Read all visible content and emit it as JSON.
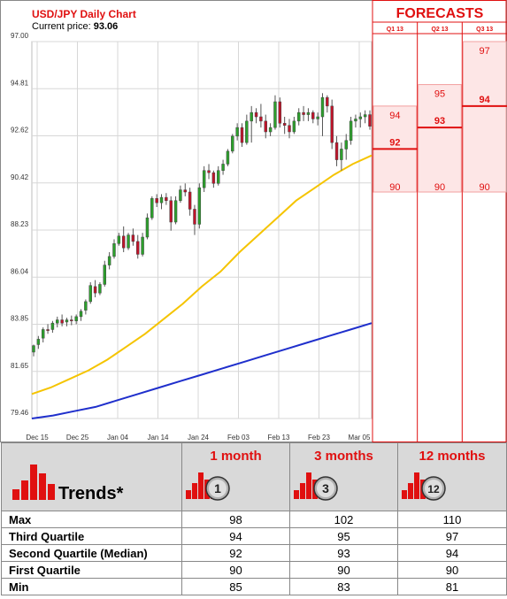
{
  "chart_data": [
    {
      "type": "candlestick",
      "title": "USD/JPY Daily Chart",
      "current_price_label": "Current price:",
      "current_price": "93.06",
      "y_ticks": [
        "97.00",
        "94.81",
        "92.62",
        "90.42",
        "88.23",
        "86.04",
        "83.85",
        "81.65",
        "79.46"
      ],
      "ylim": [
        79.46,
        97.0
      ],
      "x_ticks": [
        "Dec 15",
        "Dec 25",
        "Jan 04",
        "Jan 14",
        "Jan 24",
        "Feb 03",
        "Feb 13",
        "Feb 23",
        "Mar 05"
      ],
      "grid": true,
      "candles": [
        {
          "o": 82.55,
          "h": 82.9,
          "l": 82.35,
          "c": 82.85
        },
        {
          "o": 82.9,
          "h": 83.3,
          "l": 82.7,
          "c": 83.15
        },
        {
          "o": 83.2,
          "h": 83.7,
          "l": 83.0,
          "c": 83.6
        },
        {
          "o": 83.6,
          "h": 83.85,
          "l": 83.4,
          "c": 83.55
        },
        {
          "o": 83.6,
          "h": 84.0,
          "l": 83.45,
          "c": 83.9
        },
        {
          "o": 83.9,
          "h": 84.2,
          "l": 83.7,
          "c": 84.05
        },
        {
          "o": 84.05,
          "h": 84.3,
          "l": 83.75,
          "c": 83.9
        },
        {
          "o": 83.95,
          "h": 84.15,
          "l": 83.75,
          "c": 84.05
        },
        {
          "o": 84.05,
          "h": 84.25,
          "l": 83.8,
          "c": 84.0
        },
        {
          "o": 84.0,
          "h": 84.3,
          "l": 83.85,
          "c": 84.2
        },
        {
          "o": 84.2,
          "h": 84.55,
          "l": 84.0,
          "c": 84.45
        },
        {
          "o": 84.5,
          "h": 85.0,
          "l": 84.3,
          "c": 84.9
        },
        {
          "o": 84.9,
          "h": 85.8,
          "l": 84.8,
          "c": 85.65
        },
        {
          "o": 85.6,
          "h": 85.9,
          "l": 85.1,
          "c": 85.3
        },
        {
          "o": 85.3,
          "h": 85.8,
          "l": 85.2,
          "c": 85.7
        },
        {
          "o": 85.7,
          "h": 86.8,
          "l": 85.6,
          "c": 86.6
        },
        {
          "o": 86.6,
          "h": 87.2,
          "l": 86.4,
          "c": 87.0
        },
        {
          "o": 87.0,
          "h": 87.8,
          "l": 86.9,
          "c": 87.6
        },
        {
          "o": 87.6,
          "h": 88.1,
          "l": 87.5,
          "c": 87.95
        },
        {
          "o": 87.95,
          "h": 88.4,
          "l": 87.2,
          "c": 87.4
        },
        {
          "o": 87.4,
          "h": 88.1,
          "l": 87.3,
          "c": 88.0
        },
        {
          "o": 88.0,
          "h": 88.3,
          "l": 87.5,
          "c": 87.7
        },
        {
          "o": 87.7,
          "h": 88.0,
          "l": 86.9,
          "c": 87.1
        },
        {
          "o": 87.1,
          "h": 88.1,
          "l": 87.0,
          "c": 87.9
        },
        {
          "o": 87.9,
          "h": 89.0,
          "l": 87.8,
          "c": 88.8
        },
        {
          "o": 88.8,
          "h": 89.8,
          "l": 88.7,
          "c": 89.7
        },
        {
          "o": 89.7,
          "h": 89.9,
          "l": 89.3,
          "c": 89.5
        },
        {
          "o": 89.5,
          "h": 89.9,
          "l": 89.2,
          "c": 89.75
        },
        {
          "o": 89.75,
          "h": 89.95,
          "l": 89.4,
          "c": 89.6
        },
        {
          "o": 89.6,
          "h": 89.8,
          "l": 88.2,
          "c": 88.6
        },
        {
          "o": 88.6,
          "h": 89.8,
          "l": 88.5,
          "c": 89.6
        },
        {
          "o": 89.6,
          "h": 90.3,
          "l": 89.5,
          "c": 90.1
        },
        {
          "o": 90.1,
          "h": 90.4,
          "l": 89.8,
          "c": 90.0
        },
        {
          "o": 90.0,
          "h": 90.2,
          "l": 88.9,
          "c": 89.2
        },
        {
          "o": 89.2,
          "h": 89.4,
          "l": 88.0,
          "c": 88.5
        },
        {
          "o": 88.5,
          "h": 90.4,
          "l": 88.3,
          "c": 90.2
        },
        {
          "o": 90.2,
          "h": 91.2,
          "l": 90.0,
          "c": 91.0
        },
        {
          "o": 91.0,
          "h": 91.3,
          "l": 90.6,
          "c": 90.9
        },
        {
          "o": 90.9,
          "h": 91.0,
          "l": 90.2,
          "c": 90.4
        },
        {
          "o": 90.4,
          "h": 91.2,
          "l": 90.3,
          "c": 91.0
        },
        {
          "o": 91.0,
          "h": 91.5,
          "l": 90.8,
          "c": 91.3
        },
        {
          "o": 91.3,
          "h": 92.0,
          "l": 91.2,
          "c": 91.9
        },
        {
          "o": 91.9,
          "h": 92.7,
          "l": 91.8,
          "c": 92.6
        },
        {
          "o": 92.6,
          "h": 93.2,
          "l": 92.4,
          "c": 93.0
        },
        {
          "o": 93.0,
          "h": 93.2,
          "l": 92.1,
          "c": 92.3
        },
        {
          "o": 92.3,
          "h": 93.6,
          "l": 92.2,
          "c": 93.3
        },
        {
          "o": 93.3,
          "h": 94.0,
          "l": 92.3,
          "c": 93.7
        },
        {
          "o": 93.7,
          "h": 93.9,
          "l": 93.2,
          "c": 93.5
        },
        {
          "o": 93.5,
          "h": 94.1,
          "l": 93.0,
          "c": 93.3
        },
        {
          "o": 93.3,
          "h": 93.6,
          "l": 92.5,
          "c": 92.8
        },
        {
          "o": 92.8,
          "h": 93.2,
          "l": 92.6,
          "c": 93.0
        },
        {
          "o": 93.0,
          "h": 94.5,
          "l": 92.9,
          "c": 94.2
        },
        {
          "o": 94.2,
          "h": 94.4,
          "l": 93.0,
          "c": 93.2
        },
        {
          "o": 93.2,
          "h": 93.5,
          "l": 92.7,
          "c": 93.1
        },
        {
          "o": 93.1,
          "h": 93.4,
          "l": 92.5,
          "c": 92.8
        },
        {
          "o": 92.8,
          "h": 93.5,
          "l": 92.7,
          "c": 93.3
        },
        {
          "o": 93.3,
          "h": 93.9,
          "l": 93.1,
          "c": 93.7
        },
        {
          "o": 93.7,
          "h": 94.0,
          "l": 93.3,
          "c": 93.6
        },
        {
          "o": 93.6,
          "h": 93.9,
          "l": 93.3,
          "c": 93.7
        },
        {
          "o": 93.7,
          "h": 93.8,
          "l": 93.2,
          "c": 93.4
        },
        {
          "o": 93.4,
          "h": 93.7,
          "l": 93.1,
          "c": 93.5
        },
        {
          "o": 93.5,
          "h": 94.6,
          "l": 92.6,
          "c": 94.4
        },
        {
          "o": 94.4,
          "h": 94.5,
          "l": 93.7,
          "c": 94.0
        },
        {
          "o": 94.0,
          "h": 94.3,
          "l": 92.0,
          "c": 92.3
        },
        {
          "o": 92.3,
          "h": 92.6,
          "l": 91.2,
          "c": 91.5
        },
        {
          "o": 91.5,
          "h": 92.3,
          "l": 91.0,
          "c": 92.0
        },
        {
          "o": 92.0,
          "h": 92.7,
          "l": 91.5,
          "c": 92.4
        },
        {
          "o": 92.4,
          "h": 93.5,
          "l": 92.2,
          "c": 93.3
        },
        {
          "o": 93.3,
          "h": 93.6,
          "l": 93.0,
          "c": 93.4
        },
        {
          "o": 93.4,
          "h": 93.7,
          "l": 93.0,
          "c": 93.5
        },
        {
          "o": 93.5,
          "h": 93.8,
          "l": 93.2,
          "c": 93.6
        },
        {
          "o": 93.6,
          "h": 93.8,
          "l": 92.9,
          "c": 93.06
        }
      ],
      "ma_short": [
        80.6,
        80.9,
        81.3,
        81.7,
        82.2,
        82.8,
        83.4,
        84.1,
        84.8,
        85.6,
        86.3,
        87.2,
        88.0,
        88.8,
        89.6,
        90.2,
        90.8,
        91.3,
        91.7
      ],
      "ma_long": [
        79.46,
        79.6,
        79.8,
        80.0,
        80.3,
        80.6,
        80.9,
        81.2,
        81.5,
        81.8,
        82.1,
        82.4,
        82.7,
        83.0,
        83.3,
        83.6,
        83.9
      ],
      "colors": {
        "up": "#2ca02c",
        "down": "#c0142a",
        "ma_short": "#f5c400",
        "ma_long": "#1f2fcc",
        "forecast": "#e01010",
        "forecast_fill": "#fde6e6"
      }
    },
    {
      "type": "forecast",
      "title": "FORECASTS",
      "columns": [
        {
          "label": "Q1 13",
          "low": 90,
          "high": 94,
          "median": 92
        },
        {
          "label": "Q2 13",
          "low": 90,
          "high": 95,
          "median": 93
        },
        {
          "label": "Q3 13",
          "low": 90,
          "high": 97,
          "median": 94
        }
      ]
    }
  ],
  "trends": {
    "title": "Trends*",
    "horizons": [
      {
        "label": "1 month",
        "badge": "1"
      },
      {
        "label": "3 months",
        "badge": "3"
      },
      {
        "label": "12 months",
        "badge": "12"
      }
    ],
    "rows": [
      {
        "label": "Max",
        "values": [
          "98",
          "102",
          "110"
        ]
      },
      {
        "label": "Third Quartile",
        "values": [
          "94",
          "95",
          "97"
        ]
      },
      {
        "label": "Second Quartile (Median)",
        "values": [
          "92",
          "93",
          "94"
        ]
      },
      {
        "label": "First Quartile",
        "values": [
          "90",
          "90",
          "90"
        ]
      },
      {
        "label": "Min",
        "values": [
          "85",
          "83",
          "81"
        ]
      }
    ]
  }
}
